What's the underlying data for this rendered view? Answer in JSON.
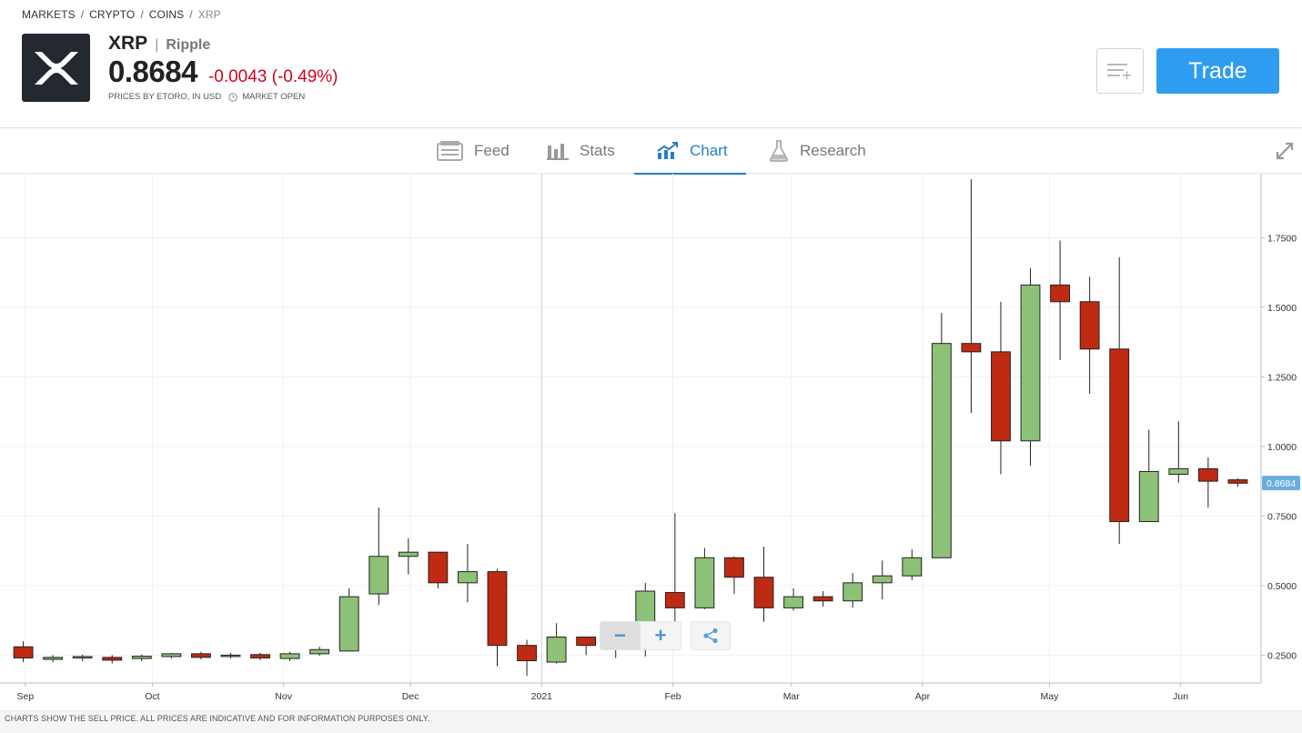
{
  "breadcrumb": {
    "items": [
      "MARKETS",
      "CRYPTO",
      "COINS"
    ],
    "current": "XRP",
    "separator": "/"
  },
  "instrument": {
    "symbol": "XRP",
    "name_separator": "|",
    "name": "Ripple",
    "price": "0.8684",
    "change": "-0.0043 (-0.49%)",
    "prices_note": "PRICES BY ETORO, IN USD",
    "market_status": "MARKET OPEN",
    "logo_icon": "xrp-logo",
    "change_color": "#d0021b"
  },
  "actions": {
    "watchlist_icon": "add-to-watchlist-icon",
    "trade_label": "Trade",
    "trade_color": "#2e9df0"
  },
  "tabs": [
    {
      "label": "Feed",
      "icon": "feed-icon",
      "active": false
    },
    {
      "label": "Stats",
      "icon": "stats-icon",
      "active": false
    },
    {
      "label": "Chart",
      "icon": "chart-icon",
      "active": true
    },
    {
      "label": "Research",
      "icon": "research-flask-icon",
      "active": false
    }
  ],
  "chart_controls": {
    "zoom_out": "−",
    "zoom_in": "+",
    "share_icon": "share-icon"
  },
  "footer_note": "CHARTS SHOW THE SELL PRICE. ALL PRICES ARE INDICATIVE AND FOR INFORMATION PURPOSES ONLY.",
  "chart_data": {
    "type": "candlestick",
    "interval": "weekly",
    "y_ticks": [
      0.25,
      0.5,
      0.75,
      1.0,
      1.25,
      1.5,
      1.75
    ],
    "y_tick_labels": [
      "0.2500",
      "0.5000",
      "0.7500",
      "1.0000",
      "1.2500",
      "1.5000",
      "1.7500"
    ],
    "ylim": [
      0.15,
      1.98
    ],
    "x_labels": [
      {
        "label": "Sep",
        "date": "2020-09-01"
      },
      {
        "label": "Oct",
        "date": "2020-10-01"
      },
      {
        "label": "Nov",
        "date": "2020-11-01"
      },
      {
        "label": "Dec",
        "date": "2020-12-01"
      },
      {
        "label": "2021",
        "date": "2021-01-01"
      },
      {
        "label": "Feb",
        "date": "2021-02-01"
      },
      {
        "label": "Mar",
        "date": "2021-03-01"
      },
      {
        "label": "Apr",
        "date": "2021-04-01"
      },
      {
        "label": "May",
        "date": "2021-05-01"
      },
      {
        "label": "Jun",
        "date": "2021-06-01"
      }
    ],
    "xlim": [
      "2020-08-26",
      "2021-06-20"
    ],
    "last_price": 0.8684,
    "last_price_label": "0.8684",
    "up_color": "#8cc177",
    "down_color": "#bf2a12",
    "grid": true,
    "candles": [
      {
        "date": "2020-08-28",
        "o": 0.28,
        "h": 0.3,
        "l": 0.225,
        "c": 0.24
      },
      {
        "date": "2020-09-04",
        "o": 0.235,
        "h": 0.25,
        "l": 0.225,
        "c": 0.242
      },
      {
        "date": "2020-09-11",
        "o": 0.24,
        "h": 0.252,
        "l": 0.228,
        "c": 0.245
      },
      {
        "date": "2020-09-18",
        "o": 0.242,
        "h": 0.25,
        "l": 0.22,
        "c": 0.232
      },
      {
        "date": "2020-09-25",
        "o": 0.238,
        "h": 0.252,
        "l": 0.228,
        "c": 0.246
      },
      {
        "date": "2020-10-02",
        "o": 0.245,
        "h": 0.258,
        "l": 0.238,
        "c": 0.255
      },
      {
        "date": "2020-10-09",
        "o": 0.255,
        "h": 0.262,
        "l": 0.235,
        "c": 0.242
      },
      {
        "date": "2020-10-16",
        "o": 0.245,
        "h": 0.258,
        "l": 0.238,
        "c": 0.25
      },
      {
        "date": "2020-10-23",
        "o": 0.252,
        "h": 0.258,
        "l": 0.232,
        "c": 0.24
      },
      {
        "date": "2020-10-30",
        "o": 0.238,
        "h": 0.262,
        "l": 0.228,
        "c": 0.255
      },
      {
        "date": "2020-11-06",
        "o": 0.255,
        "h": 0.28,
        "l": 0.248,
        "c": 0.27
      },
      {
        "date": "2020-11-13",
        "o": 0.265,
        "h": 0.49,
        "l": 0.265,
        "c": 0.46
      },
      {
        "date": "2020-11-20",
        "o": 0.47,
        "h": 0.78,
        "l": 0.43,
        "c": 0.605
      },
      {
        "date": "2020-11-27",
        "o": 0.605,
        "h": 0.67,
        "l": 0.54,
        "c": 0.62
      },
      {
        "date": "2020-12-04",
        "o": 0.62,
        "h": 0.62,
        "l": 0.49,
        "c": 0.51
      },
      {
        "date": "2020-12-11",
        "o": 0.51,
        "h": 0.65,
        "l": 0.44,
        "c": 0.55
      },
      {
        "date": "2020-12-18",
        "o": 0.55,
        "h": 0.56,
        "l": 0.21,
        "c": 0.285
      },
      {
        "date": "2020-12-25",
        "o": 0.285,
        "h": 0.305,
        "l": 0.175,
        "c": 0.23
      },
      {
        "date": "2021-01-01",
        "o": 0.225,
        "h": 0.365,
        "l": 0.22,
        "c": 0.315
      },
      {
        "date": "2021-01-08",
        "o": 0.315,
        "h": 0.315,
        "l": 0.25,
        "c": 0.285
      },
      {
        "date": "2021-01-15",
        "o": 0.285,
        "h": 0.32,
        "l": 0.24,
        "c": 0.275
      },
      {
        "date": "2021-01-22",
        "o": 0.27,
        "h": 0.51,
        "l": 0.245,
        "c": 0.48
      },
      {
        "date": "2021-01-29",
        "o": 0.475,
        "h": 0.76,
        "l": 0.36,
        "c": 0.42
      },
      {
        "date": "2021-02-05",
        "o": 0.42,
        "h": 0.635,
        "l": 0.415,
        "c": 0.6
      },
      {
        "date": "2021-02-12",
        "o": 0.6,
        "h": 0.605,
        "l": 0.47,
        "c": 0.53
      },
      {
        "date": "2021-02-19",
        "o": 0.53,
        "h": 0.64,
        "l": 0.37,
        "c": 0.42
      },
      {
        "date": "2021-02-26",
        "o": 0.42,
        "h": 0.49,
        "l": 0.41,
        "c": 0.46
      },
      {
        "date": "2021-03-05",
        "o": 0.46,
        "h": 0.48,
        "l": 0.425,
        "c": 0.445
      },
      {
        "date": "2021-03-12",
        "o": 0.445,
        "h": 0.545,
        "l": 0.42,
        "c": 0.51
      },
      {
        "date": "2021-03-19",
        "o": 0.51,
        "h": 0.59,
        "l": 0.45,
        "c": 0.535
      },
      {
        "date": "2021-03-26",
        "o": 0.535,
        "h": 0.63,
        "l": 0.52,
        "c": 0.6
      },
      {
        "date": "2021-04-02",
        "o": 0.6,
        "h": 1.48,
        "l": 0.6,
        "c": 1.37
      },
      {
        "date": "2021-04-09",
        "o": 1.37,
        "h": 1.96,
        "l": 1.12,
        "c": 1.34
      },
      {
        "date": "2021-04-16",
        "o": 1.34,
        "h": 1.52,
        "l": 0.9,
        "c": 1.02
      },
      {
        "date": "2021-04-23",
        "o": 1.02,
        "h": 1.64,
        "l": 0.93,
        "c": 1.58
      },
      {
        "date": "2021-04-30",
        "o": 1.58,
        "h": 1.74,
        "l": 1.31,
        "c": 1.52
      },
      {
        "date": "2021-05-07",
        "o": 1.52,
        "h": 1.61,
        "l": 1.19,
        "c": 1.35
      },
      {
        "date": "2021-05-14",
        "o": 1.35,
        "h": 1.68,
        "l": 0.65,
        "c": 0.73
      },
      {
        "date": "2021-05-21",
        "o": 0.73,
        "h": 1.06,
        "l": 0.73,
        "c": 0.91
      },
      {
        "date": "2021-05-28",
        "o": 0.9,
        "h": 1.09,
        "l": 0.87,
        "c": 0.92
      },
      {
        "date": "2021-06-04",
        "o": 0.92,
        "h": 0.96,
        "l": 0.78,
        "c": 0.875
      },
      {
        "date": "2021-06-11",
        "o": 0.88,
        "h": 0.885,
        "l": 0.855,
        "c": 0.868
      }
    ]
  }
}
